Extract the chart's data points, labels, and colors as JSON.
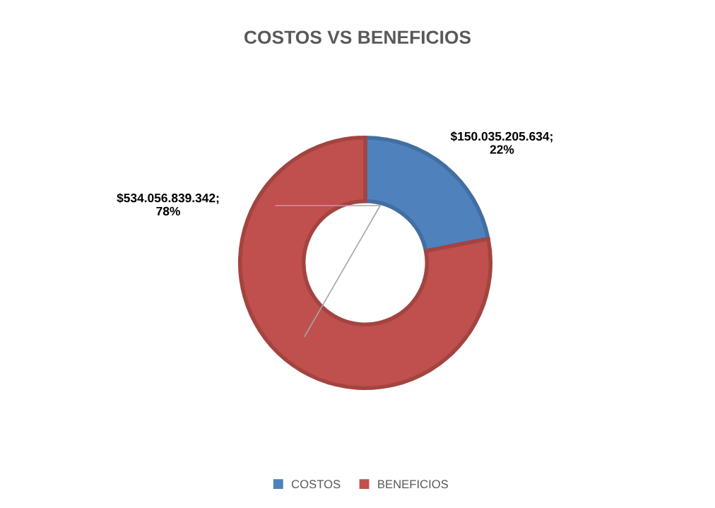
{
  "chart_data": {
    "type": "donut",
    "title": "COSTOS VS BENEFICIOS",
    "categories": [
      "COSTOS",
      "BENEFICIOS"
    ],
    "values": [
      150035205634,
      534056839342
    ],
    "colors": [
      "#4f81bd",
      "#c0504d"
    ],
    "value_labels": [
      "$150.035.205.634;\n22%",
      "$534.056.839.342;\n78%"
    ],
    "legend": "bottom"
  }
}
